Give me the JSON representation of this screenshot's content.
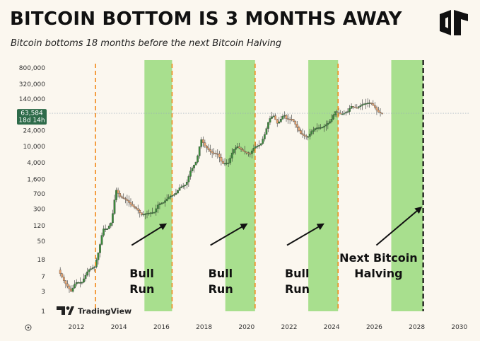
{
  "title": "BITCOIN BOTTOM IS 3 MONTHS AWAY",
  "subtitle": "Bitcoin bottoms 18 months before the next Bitcoin Halving",
  "watermark": "TradingView",
  "price_label": {
    "value": "63,584",
    "countdown": "18d 14h"
  },
  "colors": {
    "bg": "#fbf7ef",
    "halving_band": "#a8df8e",
    "halving_line": "#f28a1c",
    "candle_up": "#3b8a3b",
    "candle_down": "#e8a06a",
    "price_badge": "#2e6b4a"
  },
  "chart_data": {
    "type": "candlestick-log",
    "title": "BITCOIN BOTTOM IS 3 MONTHS AWAY",
    "subtitle": "Bitcoin bottoms 18 months before the next Bitcoin Halving",
    "x_ticks": [
      "2012",
      "2014",
      "2016",
      "2018",
      "2020",
      "2022",
      "2024",
      "2026",
      "2028",
      "2030"
    ],
    "y_ticks": [
      1,
      3,
      7,
      18,
      50,
      120,
      300,
      700,
      1600,
      4000,
      10000,
      24000,
      63584,
      140000,
      320000,
      800000
    ],
    "y_tick_labels": [
      "1",
      "3",
      "7",
      "18",
      "50",
      "120",
      "300",
      "700",
      "1,600",
      "4,000",
      "10,000",
      "24,000",
      "",
      "140,000",
      "320,000",
      "800,000"
    ],
    "xlim": [
      2011.0,
      2030.5
    ],
    "ylim": [
      1,
      800000
    ],
    "y_scale": "log",
    "grid": false,
    "current_price": 63584,
    "halving_dates": [
      2012.9,
      2016.5,
      2020.4,
      2024.3
    ],
    "next_halving": 2028.3,
    "bottom_windows": [
      {
        "start": 2015.2,
        "end": 2016.5
      },
      {
        "start": 2019.0,
        "end": 2020.4
      },
      {
        "start": 2022.9,
        "end": 2024.3
      },
      {
        "start": 2026.8,
        "end": 2028.3
      }
    ],
    "price_path": [
      [
        2011.2,
        10
      ],
      [
        2011.5,
        5
      ],
      [
        2011.8,
        3
      ],
      [
        2012.0,
        5
      ],
      [
        2012.3,
        5
      ],
      [
        2012.6,
        10
      ],
      [
        2012.9,
        12
      ],
      [
        2013.1,
        30
      ],
      [
        2013.3,
        100
      ],
      [
        2013.5,
        100
      ],
      [
        2013.7,
        150
      ],
      [
        2013.9,
        900
      ],
      [
        2014.1,
        600
      ],
      [
        2014.4,
        500
      ],
      [
        2014.7,
        350
      ],
      [
        2014.9,
        300
      ],
      [
        2015.1,
        220
      ],
      [
        2015.4,
        240
      ],
      [
        2015.7,
        250
      ],
      [
        2015.9,
        400
      ],
      [
        2016.1,
        420
      ],
      [
        2016.4,
        600
      ],
      [
        2016.7,
        700
      ],
      [
        2016.9,
        1000
      ],
      [
        2017.2,
        1200
      ],
      [
        2017.4,
        2500
      ],
      [
        2017.7,
        4500
      ],
      [
        2017.9,
        15000
      ],
      [
        2018.1,
        10000
      ],
      [
        2018.4,
        7000
      ],
      [
        2018.7,
        6500
      ],
      [
        2018.9,
        3800
      ],
      [
        2019.2,
        4000
      ],
      [
        2019.4,
        8000
      ],
      [
        2019.6,
        10000
      ],
      [
        2019.9,
        7500
      ],
      [
        2020.2,
        6500
      ],
      [
        2020.4,
        9500
      ],
      [
        2020.7,
        11000
      ],
      [
        2020.9,
        20000
      ],
      [
        2021.1,
        45000
      ],
      [
        2021.3,
        57000
      ],
      [
        2021.5,
        35000
      ],
      [
        2021.8,
        60000
      ],
      [
        2021.9,
        47000
      ],
      [
        2022.2,
        45000
      ],
      [
        2022.4,
        30000
      ],
      [
        2022.6,
        20000
      ],
      [
        2022.9,
        16500
      ],
      [
        2023.1,
        23000
      ],
      [
        2023.3,
        28000
      ],
      [
        2023.6,
        29000
      ],
      [
        2023.8,
        34000
      ],
      [
        2024.0,
        42000
      ],
      [
        2024.2,
        70000
      ],
      [
        2024.5,
        60000
      ],
      [
        2024.8,
        70000
      ],
      [
        2024.95,
        95000
      ],
      [
        2025.2,
        85000
      ],
      [
        2025.5,
        105000
      ],
      [
        2025.8,
        115000
      ],
      [
        2025.9,
        110000
      ],
      [
        2026.1,
        85000
      ],
      [
        2026.2,
        70000
      ],
      [
        2026.35,
        63584
      ]
    ],
    "annotations": [
      {
        "lines": [
          "Bull",
          "Run"
        ],
        "x_text": 2014.5,
        "arrow_from": [
          2014.6,
          40
        ],
        "arrow_to": [
          2016.2,
          130
        ]
      },
      {
        "lines": [
          "Bull",
          "Run"
        ],
        "x_text": 2018.2,
        "arrow_from": [
          2018.3,
          40
        ],
        "arrow_to": [
          2020.0,
          130
        ]
      },
      {
        "lines": [
          "Bull",
          "Run"
        ],
        "x_text": 2021.8,
        "arrow_from": [
          2021.9,
          40
        ],
        "arrow_to": [
          2023.6,
          130
        ]
      },
      {
        "lines": [
          "Next Bitcoin",
          "Halving"
        ],
        "x_text": 2026.2,
        "arrow_from": [
          2026.1,
          40
        ],
        "arrow_to": [
          2028.2,
          330
        ]
      }
    ]
  }
}
